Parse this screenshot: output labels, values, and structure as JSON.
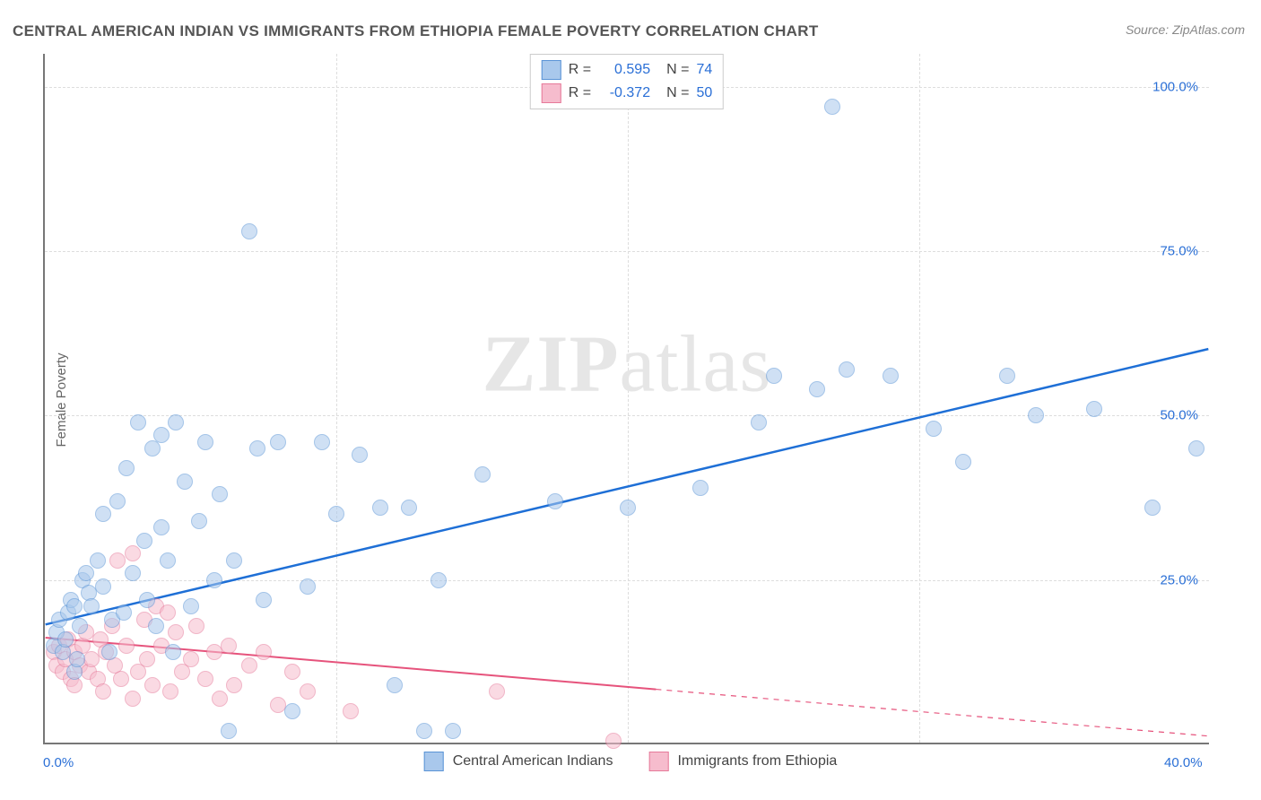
{
  "title": "CENTRAL AMERICAN INDIAN VS IMMIGRANTS FROM ETHIOPIA FEMALE POVERTY CORRELATION CHART",
  "source": "Source: ZipAtlas.com",
  "watermark_a": "ZIP",
  "watermark_b": "atlas",
  "ylabel": "Female Poverty",
  "chart": {
    "type": "scatter",
    "background_color": "#ffffff",
    "grid_color": "#dddddd",
    "axis_color": "#777777",
    "xlim": [
      0,
      40
    ],
    "ylim": [
      0,
      105
    ],
    "xticks": [
      {
        "v": 0,
        "label": "0.0%"
      },
      {
        "v": 40,
        "label": "40.0%"
      }
    ],
    "yticks": [
      {
        "v": 25,
        "label": "25.0%"
      },
      {
        "v": 50,
        "label": "50.0%"
      },
      {
        "v": 75,
        "label": "75.0%"
      },
      {
        "v": 100,
        "label": "100.0%"
      }
    ],
    "vgrid": [
      10,
      20,
      30
    ],
    "hgrid": [
      25,
      50,
      75,
      100
    ],
    "marker_radius": 9,
    "marker_opacity": 0.55,
    "series": {
      "a": {
        "name": "Central American Indians",
        "fill": "#a9c8ec",
        "stroke": "#5a94d6",
        "trend_color": "#1e6fd6",
        "trend_width": 2.5,
        "R_label": "R =",
        "R": "0.595",
        "N_label": "N =",
        "N": "74",
        "trend": {
          "x1": 0,
          "y1": 18,
          "x2": 40,
          "y2": 60
        },
        "points": [
          [
            0.3,
            15
          ],
          [
            0.4,
            17
          ],
          [
            0.5,
            19
          ],
          [
            0.6,
            14
          ],
          [
            0.7,
            16
          ],
          [
            0.8,
            20
          ],
          [
            0.9,
            22
          ],
          [
            1.0,
            21
          ],
          [
            1.0,
            11
          ],
          [
            1.1,
            13
          ],
          [
            1.2,
            18
          ],
          [
            1.3,
            25
          ],
          [
            1.4,
            26
          ],
          [
            1.5,
            23
          ],
          [
            1.6,
            21
          ],
          [
            1.8,
            28
          ],
          [
            2.0,
            24
          ],
          [
            2.0,
            35
          ],
          [
            2.2,
            14
          ],
          [
            2.3,
            19
          ],
          [
            2.5,
            37
          ],
          [
            2.7,
            20
          ],
          [
            2.8,
            42
          ],
          [
            3.0,
            26
          ],
          [
            3.2,
            49
          ],
          [
            3.4,
            31
          ],
          [
            3.5,
            22
          ],
          [
            3.7,
            45
          ],
          [
            3.8,
            18
          ],
          [
            4.0,
            33
          ],
          [
            4.0,
            47
          ],
          [
            4.2,
            28
          ],
          [
            4.4,
            14
          ],
          [
            4.5,
            49
          ],
          [
            4.8,
            40
          ],
          [
            5.0,
            21
          ],
          [
            5.3,
            34
          ],
          [
            5.5,
            46
          ],
          [
            5.8,
            25
          ],
          [
            6.0,
            38
          ],
          [
            6.3,
            2
          ],
          [
            6.5,
            28
          ],
          [
            7.0,
            78
          ],
          [
            7.3,
            45
          ],
          [
            7.5,
            22
          ],
          [
            8.0,
            46
          ],
          [
            8.5,
            5
          ],
          [
            9.0,
            24
          ],
          [
            9.5,
            46
          ],
          [
            10.0,
            35
          ],
          [
            10.8,
            44
          ],
          [
            11.5,
            36
          ],
          [
            12.0,
            9
          ],
          [
            12.5,
            36
          ],
          [
            13.0,
            2
          ],
          [
            13.5,
            25
          ],
          [
            14.0,
            2
          ],
          [
            15.0,
            41
          ],
          [
            17.5,
            37
          ],
          [
            20.0,
            36
          ],
          [
            22.5,
            39
          ],
          [
            24.5,
            49
          ],
          [
            25.0,
            56
          ],
          [
            26.5,
            54
          ],
          [
            27.0,
            97
          ],
          [
            27.5,
            57
          ],
          [
            29.0,
            56
          ],
          [
            30.5,
            48
          ],
          [
            31.5,
            43
          ],
          [
            33.0,
            56
          ],
          [
            34.0,
            50
          ],
          [
            36.0,
            51
          ],
          [
            38.0,
            36
          ],
          [
            39.5,
            45
          ]
        ]
      },
      "b": {
        "name": "Immigrants from Ethiopia",
        "fill": "#f6bccd",
        "stroke": "#e67a9a",
        "trend_color": "#e6537c",
        "trend_width": 2,
        "trend_dash_from_x": 21,
        "R_label": "R =",
        "R": "-0.372",
        "N_label": "N =",
        "N": "50",
        "trend": {
          "x1": 0,
          "y1": 16,
          "x2": 40,
          "y2": 1
        },
        "points": [
          [
            0.3,
            14
          ],
          [
            0.4,
            12
          ],
          [
            0.5,
            15
          ],
          [
            0.6,
            11
          ],
          [
            0.7,
            13
          ],
          [
            0.8,
            16
          ],
          [
            0.9,
            10
          ],
          [
            1.0,
            14
          ],
          [
            1.0,
            9
          ],
          [
            1.2,
            12
          ],
          [
            1.3,
            15
          ],
          [
            1.4,
            17
          ],
          [
            1.5,
            11
          ],
          [
            1.6,
            13
          ],
          [
            1.8,
            10
          ],
          [
            1.9,
            16
          ],
          [
            2.0,
            8
          ],
          [
            2.1,
            14
          ],
          [
            2.3,
            18
          ],
          [
            2.4,
            12
          ],
          [
            2.5,
            28
          ],
          [
            2.6,
            10
          ],
          [
            2.8,
            15
          ],
          [
            3.0,
            29
          ],
          [
            3.0,
            7
          ],
          [
            3.2,
            11
          ],
          [
            3.4,
            19
          ],
          [
            3.5,
            13
          ],
          [
            3.7,
            9
          ],
          [
            3.8,
            21
          ],
          [
            4.0,
            15
          ],
          [
            4.2,
            20
          ],
          [
            4.3,
            8
          ],
          [
            4.5,
            17
          ],
          [
            4.7,
            11
          ],
          [
            5.0,
            13
          ],
          [
            5.2,
            18
          ],
          [
            5.5,
            10
          ],
          [
            5.8,
            14
          ],
          [
            6.0,
            7
          ],
          [
            6.3,
            15
          ],
          [
            6.5,
            9
          ],
          [
            7.0,
            12
          ],
          [
            7.5,
            14
          ],
          [
            8.0,
            6
          ],
          [
            8.5,
            11
          ],
          [
            9.0,
            8
          ],
          [
            10.5,
            5
          ],
          [
            15.5,
            8
          ],
          [
            19.5,
            0.5
          ]
        ]
      }
    }
  }
}
